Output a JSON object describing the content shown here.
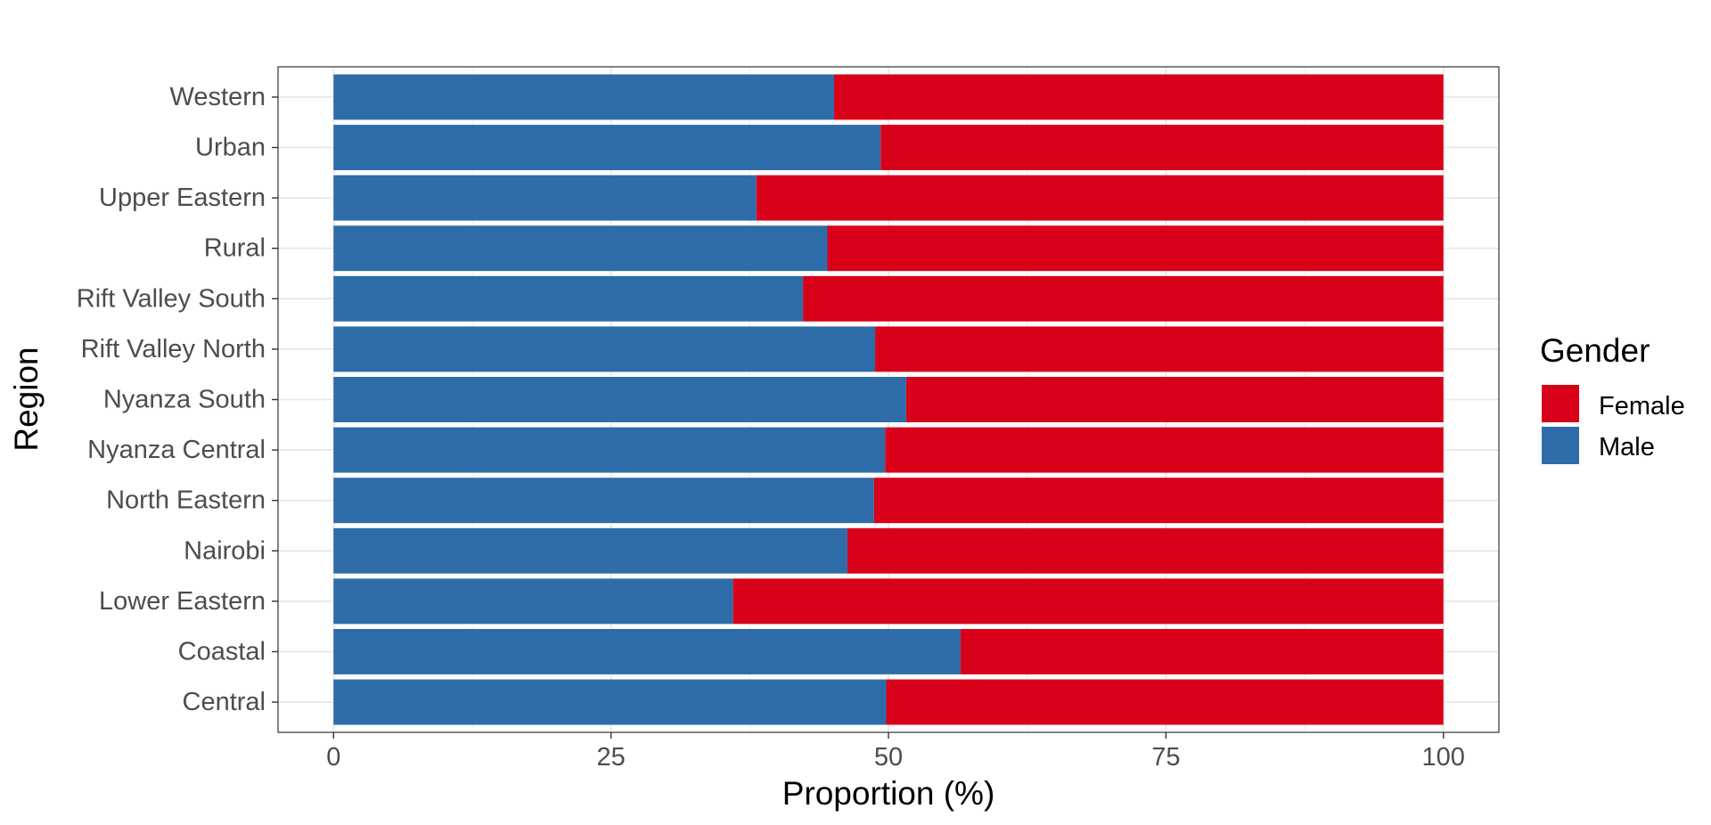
{
  "chart_data": {
    "type": "bar",
    "orientation": "horizontal",
    "stacked": true,
    "categories": [
      "Central",
      "Coastal",
      "Lower Eastern",
      "Nairobi",
      "North Eastern",
      "Nyanza Central",
      "Nyanza South",
      "Rift Valley North",
      "Rift Valley South",
      "Rural",
      "Upper Eastern",
      "Urban",
      "Western"
    ],
    "series": [
      {
        "name": "Male",
        "color": "#2e6ca9",
        "values": [
          49.8,
          56.5,
          36.0,
          46.3,
          48.7,
          49.7,
          51.6,
          48.8,
          42.3,
          44.5,
          38.1,
          49.3,
          45.1
        ]
      },
      {
        "name": "Female",
        "color": "#d90019",
        "values": [
          50.2,
          43.5,
          64.0,
          53.7,
          51.3,
          50.3,
          48.4,
          51.2,
          57.7,
          55.5,
          61.9,
          50.7,
          54.9
        ]
      }
    ],
    "xlabel": "Proportion (%)",
    "ylabel": "Region",
    "xlim": [
      -5,
      105
    ],
    "xticks": [
      0,
      25,
      50,
      75,
      100
    ],
    "grid": true,
    "legend": {
      "title": "Gender",
      "position": "right",
      "entries": [
        {
          "label": "Female",
          "color": "#d90019"
        },
        {
          "label": "Male",
          "color": "#2e6ca9"
        }
      ]
    }
  }
}
